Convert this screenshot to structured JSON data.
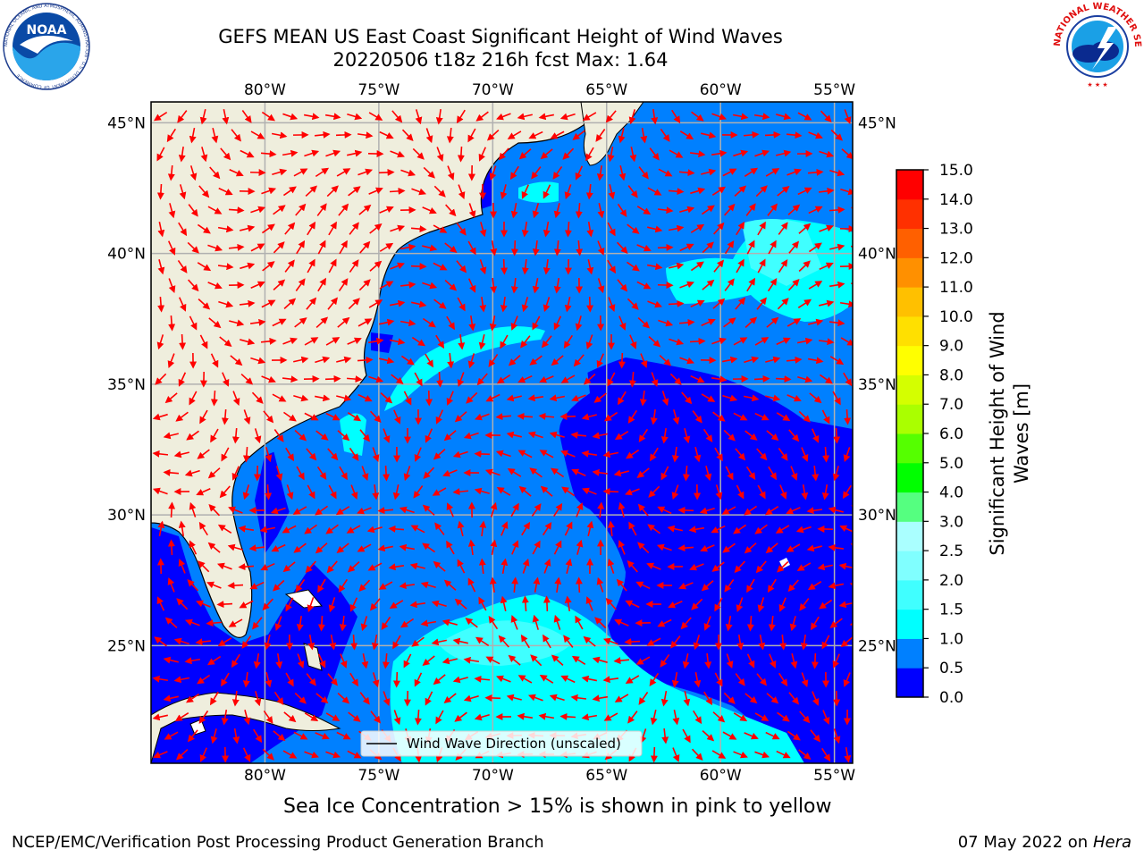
{
  "title_line1": "GEFS MEAN US East Coast Significant Height of Wind Waves",
  "title_line2": "20220506 t18z 216h fcst   Max: 1.64",
  "logos": {
    "left": {
      "name": "noaa-logo",
      "text": "NOAA",
      "ring_text": "NATIONAL OCEANIC AND ATMOSPHERIC ADMINISTRATION · U.S. DEPARTMENT OF COMMERCE"
    },
    "right": {
      "name": "nws-logo",
      "ring_text": "NATIONAL WEATHER SERVICE"
    }
  },
  "map": {
    "lon_labels": [
      "80°W",
      "75°W",
      "70°W",
      "65°W",
      "60°W",
      "55°W"
    ],
    "lon_values": [
      -80,
      -75,
      -70,
      -65,
      -60,
      -55
    ],
    "lat_labels": [
      "45°N",
      "40°N",
      "35°N",
      "30°N",
      "25°N"
    ],
    "lat_values": [
      45,
      40,
      35,
      30,
      25
    ],
    "extent": {
      "lon_min": -85,
      "lon_max": -54.2,
      "lat_min": 20.5,
      "lat_max": 45.8
    },
    "legend_label": "Wind Wave Direction (unscaled)",
    "arrow_color": "#ff0000",
    "land_color": "#efeedd"
  },
  "colorbar": {
    "ticks": [
      "0.0",
      "0.5",
      "1.0",
      "1.5",
      "2.0",
      "2.5",
      "3.0",
      "4.0",
      "5.0",
      "6.0",
      "7.0",
      "8.0",
      "9.0",
      "10.0",
      "11.0",
      "12.0",
      "13.0",
      "14.0",
      "15.0"
    ],
    "colors": [
      "#0000ff",
      "#0080ff",
      "#00ffff",
      "#40ffff",
      "#80ffff",
      "#aaffff",
      "#55ff80",
      "#00ff00",
      "#55ff00",
      "#aaff00",
      "#d4ff00",
      "#ffff00",
      "#ffe000",
      "#ffc000",
      "#ff9000",
      "#ff6000",
      "#ff3000",
      "#ff0000"
    ],
    "label_line1": "Significant Height of Wind",
    "label_line2": "Waves [m]"
  },
  "footer": {
    "note": "Sea Ice Concentration > 15% is shown in pink to yellow",
    "credit": "NCEP/EMC/Verification Post Processing Product Generation Branch",
    "date": "07 May 2022 on",
    "host": "Hera"
  }
}
